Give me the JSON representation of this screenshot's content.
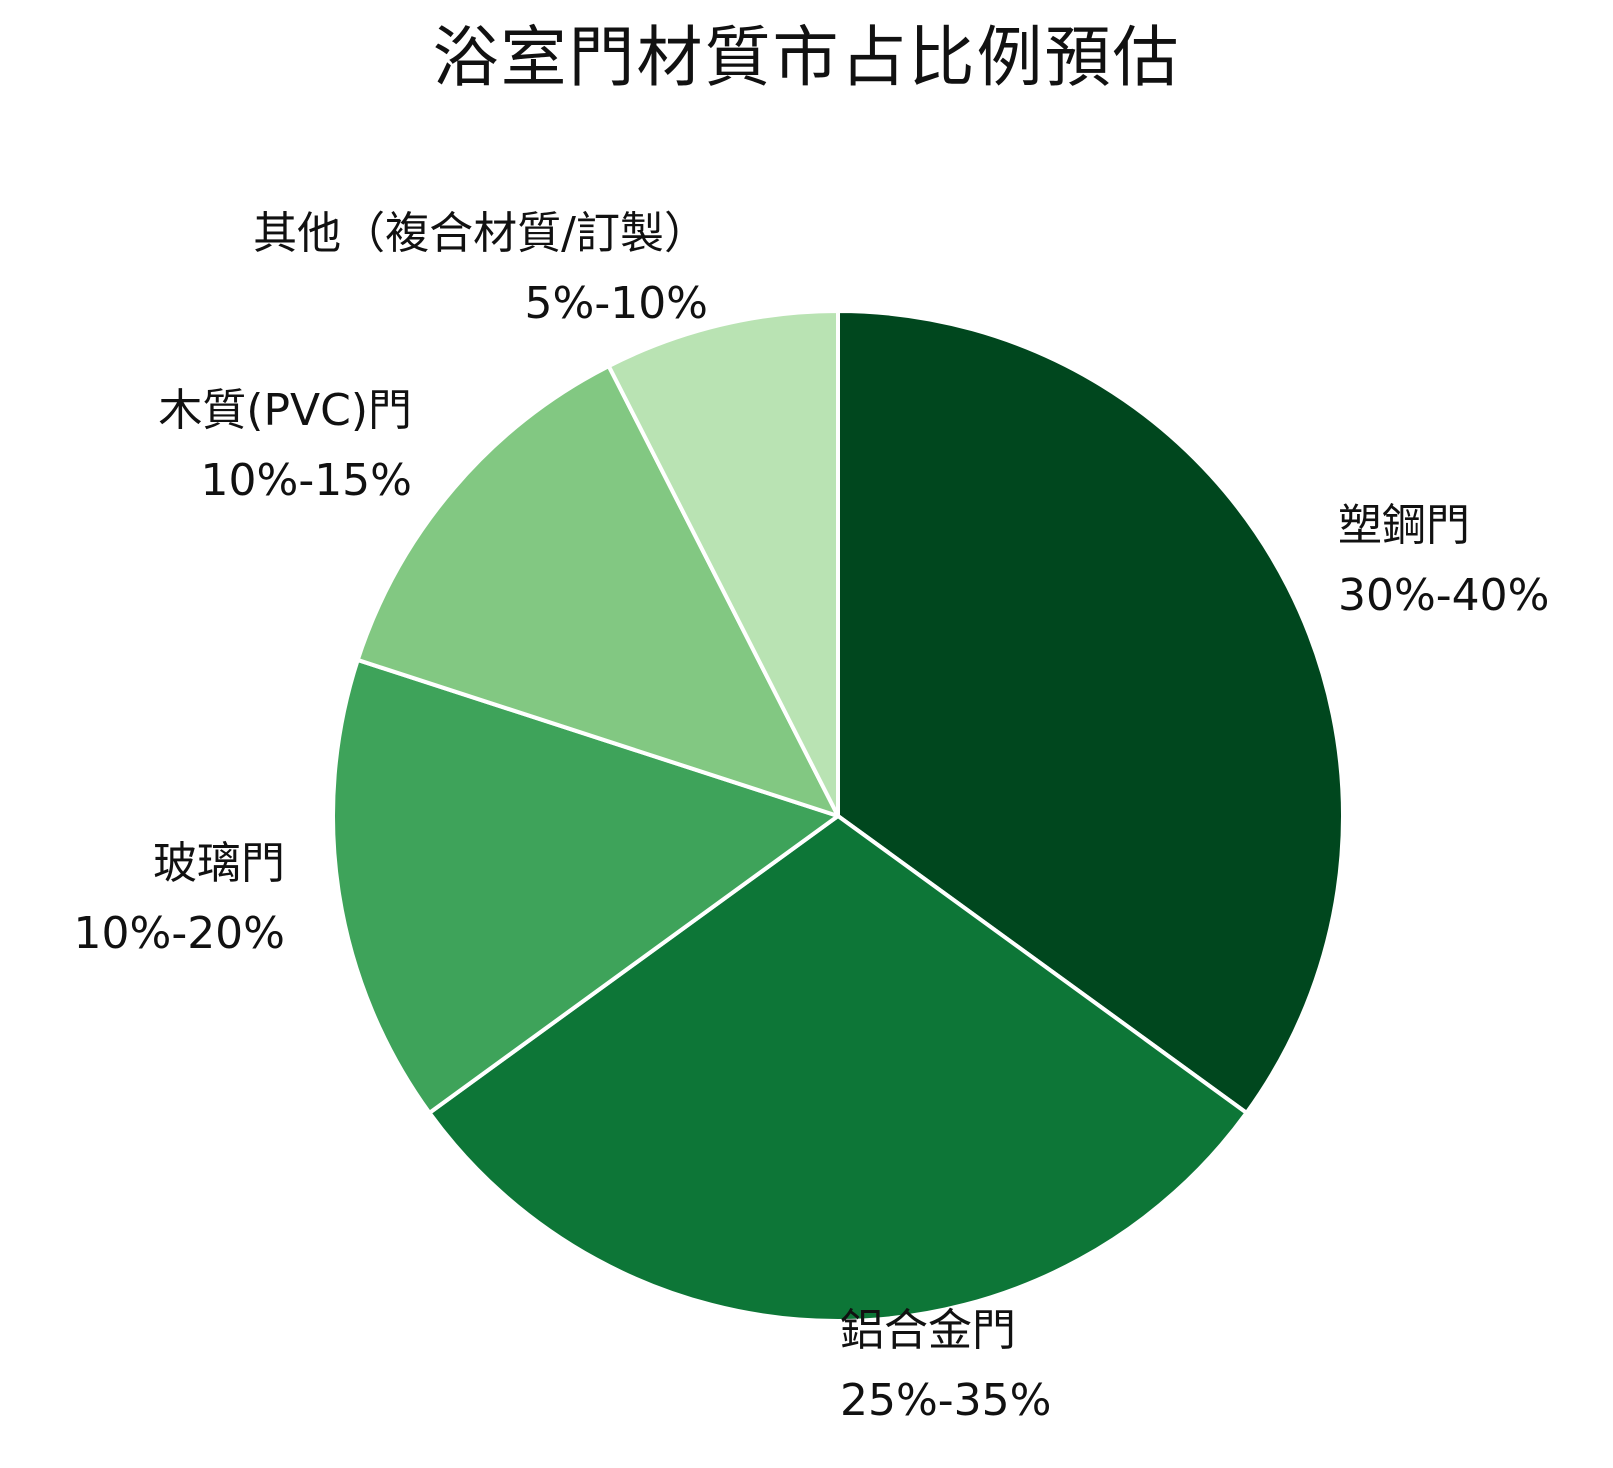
{
  "chart_data": {
    "type": "pie",
    "title": "浴室門材質市占比例預估",
    "slices": [
      {
        "name": "塑鋼門",
        "range_label": "30%-40%",
        "value": 35,
        "color": "#00471e"
      },
      {
        "name": "鋁合金門",
        "range_label": "25%-35%",
        "value": 30,
        "color": "#0d7637"
      },
      {
        "name": "玻璃門",
        "range_label": "10%-20%",
        "value": 15,
        "color": "#3ea35a"
      },
      {
        "name": "木質(PVC)門",
        "range_label": "10%-15%",
        "value": 12.5,
        "color": "#82c882"
      },
      {
        "name": "其他（複合材質/訂製）",
        "range_label": "5%-10%",
        "value": 7.5,
        "color": "#b9e3b3"
      }
    ],
    "start_angle": "top",
    "direction": "clockwise",
    "legend": "none",
    "separator_color": "#ffffff"
  }
}
